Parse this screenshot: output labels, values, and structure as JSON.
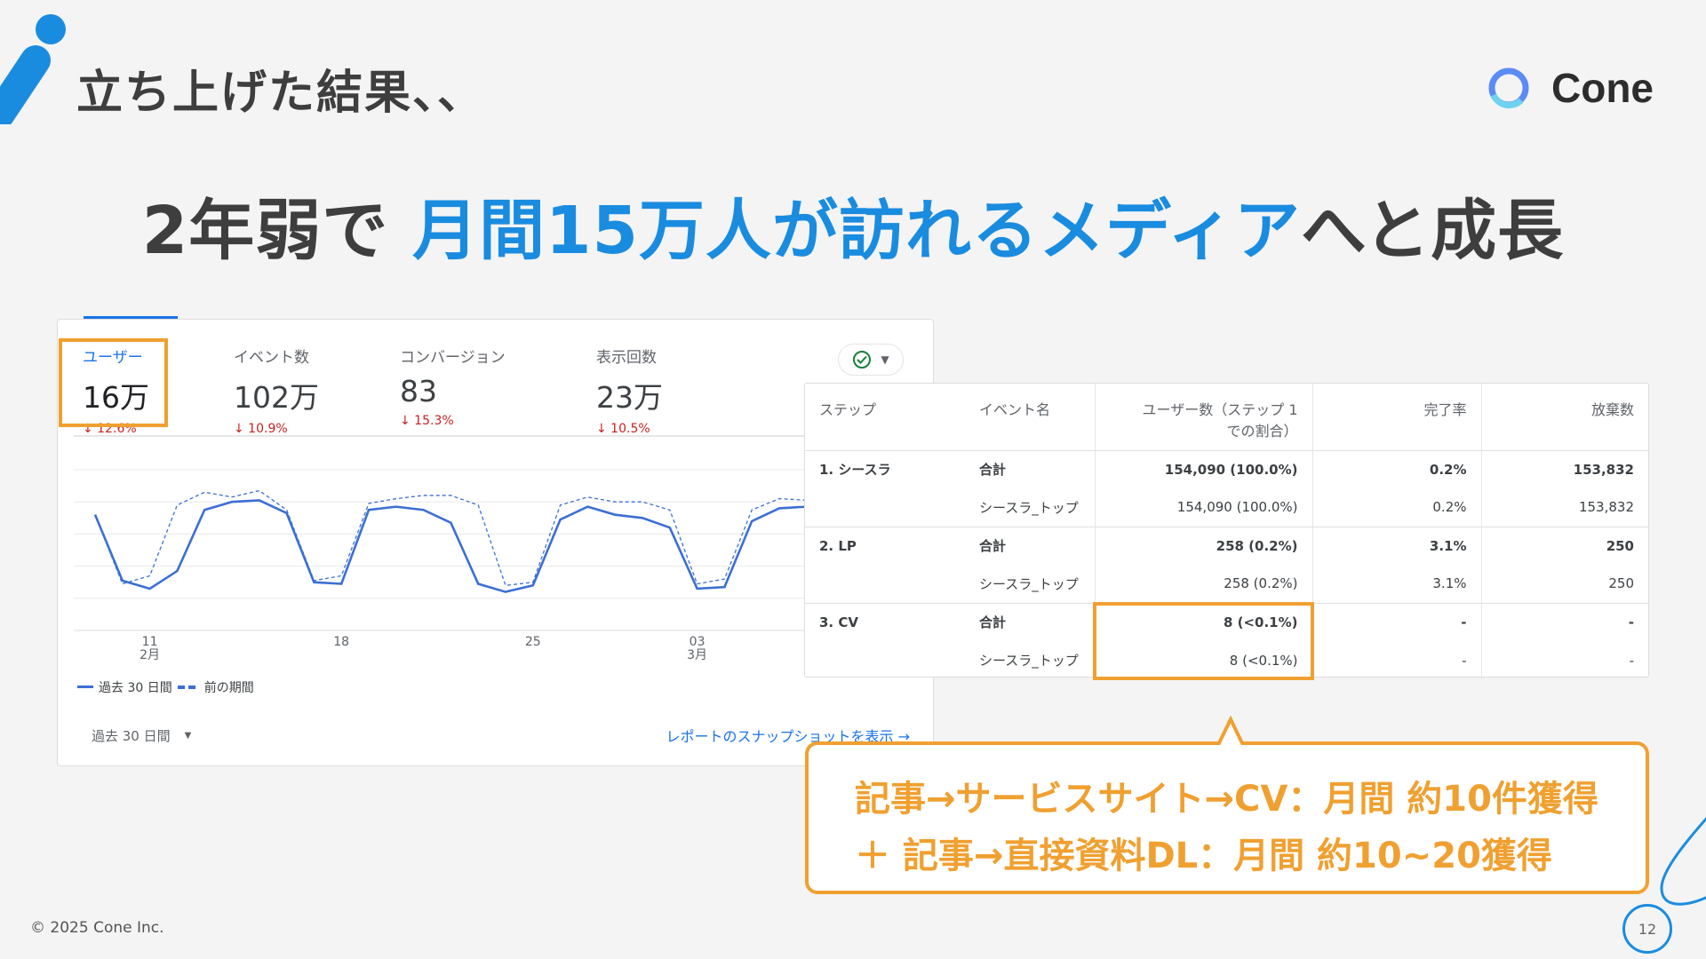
{
  "slide": {
    "title": "立ち上げた結果、、",
    "headline": {
      "pre": "2年弱で ",
      "highlight": "月間15万人が訪れるメディア",
      "post": "へと成長"
    },
    "logo": "Cone",
    "footer": "© 2025 Cone Inc.",
    "page_number": "12"
  },
  "colors": {
    "accent_blue": "#1a8ce0",
    "highlight_orange": "#f0a030",
    "series_blue": "#3b6fd4"
  },
  "analytics_card": {
    "metrics": [
      {
        "label": "ユーザー",
        "value": "16万",
        "change": "↓ 12.6%"
      },
      {
        "label": "イベント数",
        "value": "102万",
        "change": "↓ 10.9%"
      },
      {
        "label": "コンバージョン",
        "value": "83",
        "change": "↓ 15.3%"
      },
      {
        "label": "表示回数",
        "value": "23万",
        "change": "↓ 10.5%"
      }
    ],
    "legend": {
      "current": "過去 30 日間",
      "previous": "前の期間"
    },
    "period_select": "過去 30 日間",
    "snapshot_link": "レポートのスナップショットを表示",
    "check_icon": "check-circle-icon"
  },
  "chart_data": {
    "type": "line",
    "x": [
      "02-09",
      "02-10",
      "02-11",
      "02-12",
      "02-13",
      "02-14",
      "02-15",
      "02-16",
      "02-17",
      "02-18",
      "02-19",
      "02-20",
      "02-21",
      "02-22",
      "02-23",
      "02-24",
      "02-25",
      "02-26",
      "02-27",
      "02-28",
      "03-01",
      "03-02",
      "03-03",
      "03-04",
      "03-05",
      "03-06",
      "03-07",
      "03-08"
    ],
    "tick_labels": [
      {
        "day": "11",
        "month": "2月"
      },
      {
        "day": "18",
        "month": ""
      },
      {
        "day": "25",
        "month": ""
      },
      {
        "day": "03",
        "month": "3月"
      }
    ],
    "series": [
      {
        "name": "過去 30 日間",
        "style": "solid",
        "values": [
          72,
          31,
          26,
          37,
          75,
          80,
          81,
          73,
          30,
          29,
          75,
          77,
          75,
          67,
          29,
          24,
          28,
          69,
          77,
          72,
          70,
          64,
          26,
          27,
          68,
          76,
          77,
          77
        ]
      },
      {
        "name": "前の期間",
        "style": "dashed",
        "values": [
          72,
          29,
          34,
          78,
          86,
          83,
          87,
          75,
          31,
          34,
          79,
          82,
          84,
          84,
          78,
          28,
          30,
          78,
          83,
          80,
          80,
          75,
          29,
          32,
          75,
          82,
          81,
          82
        ]
      }
    ],
    "ylim": [
      0,
      100
    ],
    "grid": true,
    "legend": "bottom-left"
  },
  "funnel_table": {
    "headers": [
      "ステップ",
      "イベント名",
      "ユーザー数（ステップ 1 での割合）",
      "完了率",
      "放棄数"
    ],
    "rows": [
      {
        "step": "1. シースラ",
        "event": "合計",
        "users": "154,090 (100.0%)",
        "rate": "0.2%",
        "abandon": "153,832",
        "bold": true
      },
      {
        "step": "",
        "event": "シースラ_トップ",
        "users": "154,090 (100.0%)",
        "rate": "0.2%",
        "abandon": "153,832"
      },
      {
        "step": "2. LP",
        "event": "合計",
        "users": "258 (0.2%)",
        "rate": "3.1%",
        "abandon": "250",
        "bold": true
      },
      {
        "step": "",
        "event": "シースラ_トップ",
        "users": "258 (0.2%)",
        "rate": "3.1%",
        "abandon": "250"
      },
      {
        "step": "3. CV",
        "event": "合計",
        "users": "8 (<0.1%)",
        "rate": "-",
        "abandon": "-",
        "bold": true
      },
      {
        "step": "",
        "event": "シースラ_トップ",
        "users": "8 (<0.1%)",
        "rate": "-",
        "abandon": "-"
      }
    ]
  },
  "callout": {
    "line1": "記事→サービスサイト→CV：月間 約10件獲得",
    "line2": "＋ 記事→直接資料DL：月間 約10~20獲得"
  }
}
